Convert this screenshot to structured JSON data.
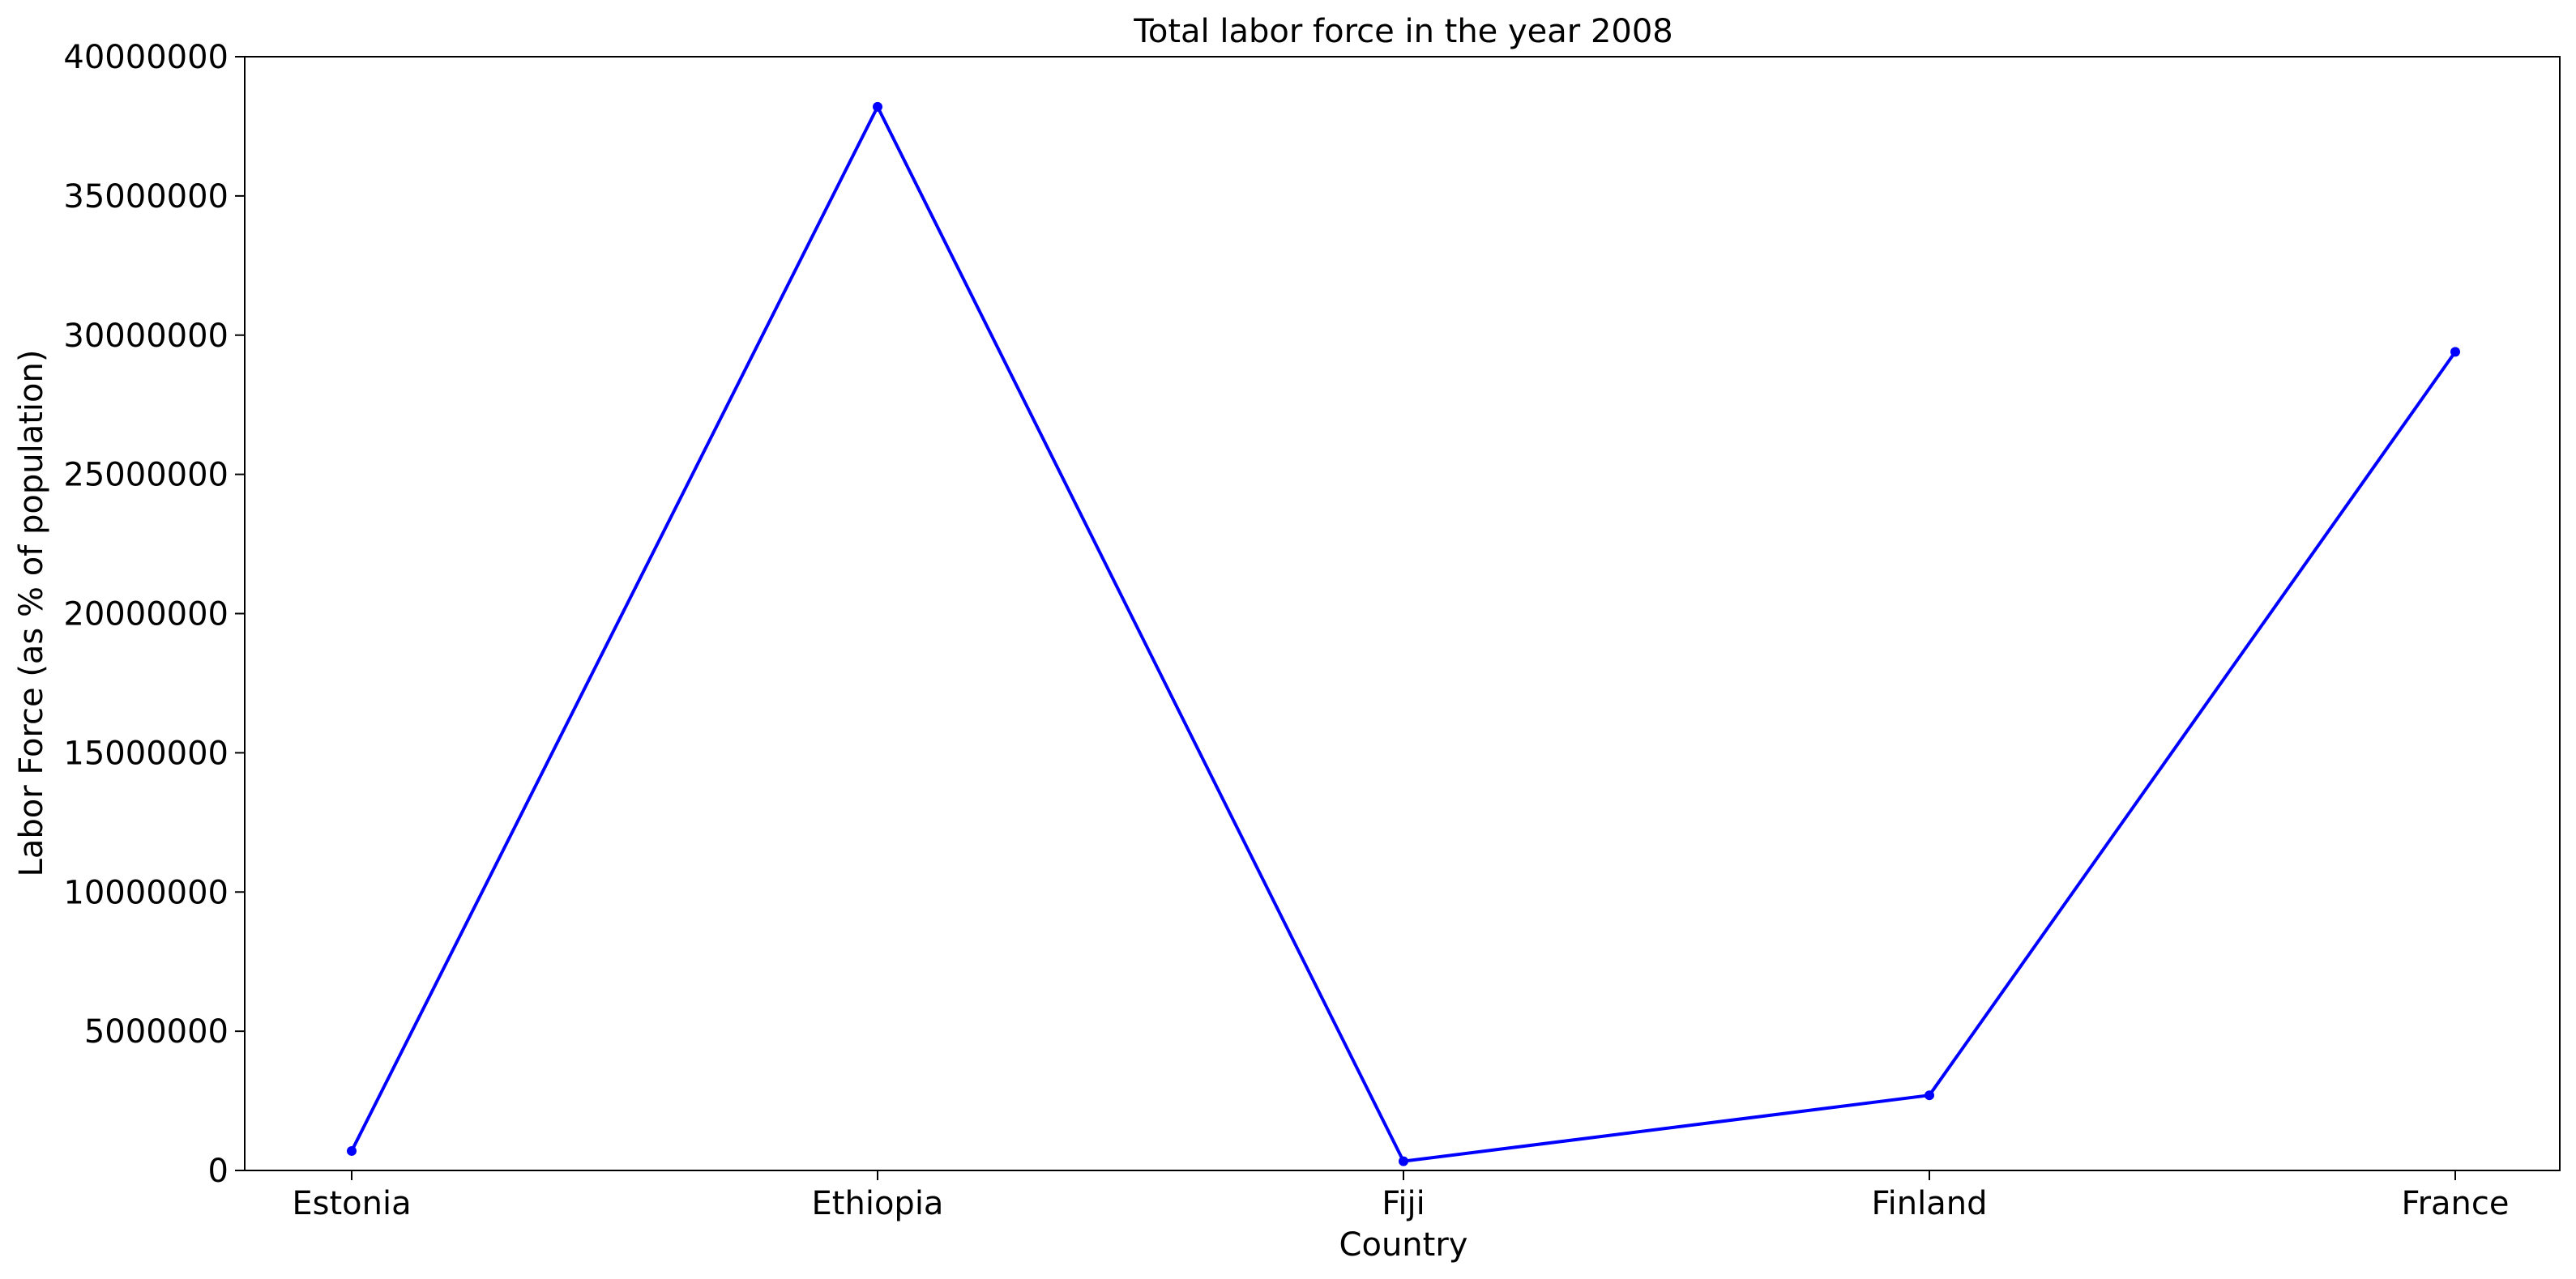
{
  "chart_data": {
    "type": "line",
    "title": "Total labor force in the year 2008",
    "xlabel": "Country",
    "ylabel": "Labor Force (as % of population)",
    "categories": [
      "Estonia",
      "Ethiopia",
      "Fiji",
      "Finland",
      "France"
    ],
    "series": [
      {
        "values": [
          700000,
          38200000,
          330000,
          2700000,
          29400000
        ],
        "color": "#0000ff"
      }
    ],
    "ylim": [
      0,
      40000000
    ],
    "yticks": [
      0,
      5000000,
      10000000,
      15000000,
      20000000,
      25000000,
      30000000,
      35000000,
      40000000
    ],
    "ytick_labels": [
      "0",
      "5000000",
      "10000000",
      "15000000",
      "20000000",
      "25000000",
      "30000000",
      "35000000",
      "40000000"
    ],
    "grid": false,
    "legend": "none"
  }
}
